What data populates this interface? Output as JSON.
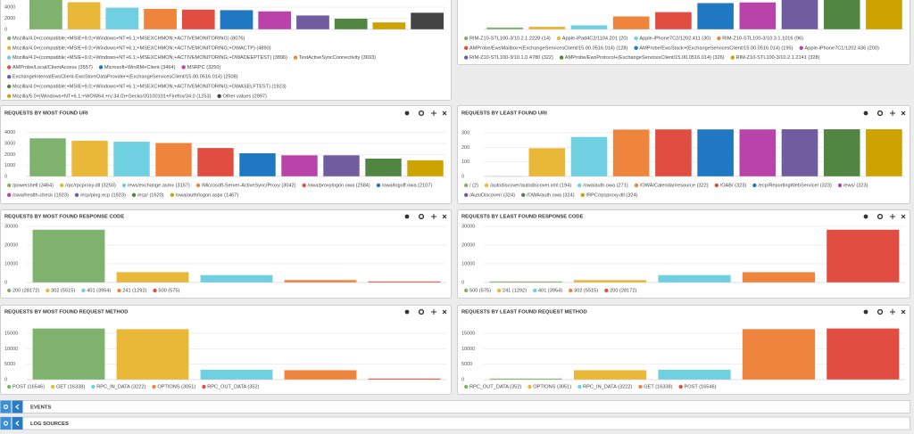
{
  "chart_data": [
    {
      "type": "bar",
      "categories": [
        "Mozilla/4.0+(compatible;+MSIE+9.0;+Windows+NT+6.1;+MSEXCHMON;+ACTIVEMONITORING) (8076)",
        "Mozilla/4.0+(compatible;+MSIE+9.0;+Windows+NT+6.1;+MSEXCHMON;+ACTIVEMONITORING;+OWACTP) (4890)",
        "Mozilla/4.0+(compatible;+MSIE+9.0;+Windows+NT+6.1;+MSEXCHMON;+ACTIVEMONITORING;+OWADEEPTEST) (3896)",
        "TestActiveSyncConnectivity (3693)",
        "AMProbe/Local/ClientAccess (3557)",
        "Microsoft+WinRM+Client (3464)",
        "MSRPC (3250)",
        "ExchangeInternalEwsClient-EwsStoreDataProvider+(ExchangeServicesClient/15.00.0516.014) (2508)",
        "Mozilla/4.0+(compatible;+MSIE+9.0;+Windows+NT+6.1;+MSEXCHMON;+ACTIVEMONITORING;+OWASELFTEST) (1923)",
        "Mozilla/5.0+(Windows+NT+6.1;+WOW64;+rv:34.0)+Gecko/20100101+Firefox/34.0 (1253)",
        "Other values (2997)"
      ],
      "values": [
        8076,
        4890,
        3896,
        3693,
        3557,
        3464,
        3250,
        2508,
        1923,
        1253,
        2997
      ],
      "colors": [
        "#7eb26d",
        "#eab839",
        "#6ed0e0",
        "#ef843c",
        "#e24d42",
        "#1f78c1",
        "#ba43a9",
        "#705da0",
        "#508642",
        "#cca300",
        "#444444"
      ],
      "ylim": [
        0,
        8500
      ],
      "yticks": [
        0,
        2000,
        4000
      ]
    },
    {
      "type": "bar",
      "categories": [
        "RIM-Z10-STL100-3/10.2.1.2228 (14)",
        "Apple-iPad4C2/1104.201 (20)",
        "Apple-iPhone7C2/1202.411 (30)",
        "RIM-Z10-STL100-3/10.3.1.1016 (96)",
        "AMProbe/EwsMailbox+(ExchangeServicesClient/15.00.0516.014) (128)",
        "AMProbe/EwsStack+(ExchangeServicesClient/15.00.0516.014) (195)",
        "Apple-iPhone7C1/1202.436 (200)",
        "RIM-Z10-STL100-3/10.1.0.4780 (322)",
        "AMProbe/EwsProtocol+(ExchangeServicesClient/15.00.0516.014) (326)",
        "RIM-Z10-STL100-3/10.2.1.2141 (328)"
      ],
      "values": [
        14,
        20,
        30,
        96,
        128,
        195,
        200,
        322,
        326,
        328
      ],
      "colors": [
        "#7eb26d",
        "#eab839",
        "#6ed0e0",
        "#ef843c",
        "#e24d42",
        "#1f78c1",
        "#ba43a9",
        "#705da0",
        "#508642",
        "#cca300"
      ],
      "ylim": [
        0,
        350
      ]
    },
    {
      "type": "bar",
      "title": "REQUESTS BY MOST FOUND URI",
      "categories": [
        "/powershell (3464)",
        "/rpc/rpcproxy.dll (3250)",
        "/ews/exchange.asmx (3157)",
        "/Microsoft-Server-ActiveSync/Proxy (3042)",
        "/owa/proxylogon.owa (2584)",
        "/owa/logoff.owa (2107)",
        "/owa/health-check (1923)",
        "/ecp/ping.ecp (1923)",
        "/ecp/ (1620)",
        "/owa/auth/logon.aspx (1467)"
      ],
      "values": [
        3464,
        3250,
        3157,
        3042,
        2584,
        2107,
        1923,
        1923,
        1620,
        1467
      ],
      "colors": [
        "#7eb26d",
        "#eab839",
        "#6ed0e0",
        "#ef843c",
        "#e24d42",
        "#1f78c1",
        "#ba43a9",
        "#705da0",
        "#508642",
        "#cca300"
      ],
      "ylim": [
        0,
        4700
      ],
      "yticks": [
        0,
        1000,
        2000,
        3000,
        4000
      ]
    },
    {
      "type": "bar",
      "title": "REQUESTS BY LEAST FOUND URI",
      "categories": [
        "/ (2)",
        "/autodiscover/autodiscover.xml (194)",
        "/owa/auth.owa (271)",
        "/OWA/Calendar/resource (322)",
        "/OAB/ (323)",
        "/ecp/ReportingWebService/ (323)",
        "/ews/ (323)",
        "/AutoDiscover/ (324)",
        "/OWA/auth.owa (324)",
        "/RPC/rpcproxy.dll (324)"
      ],
      "values": [
        2,
        194,
        271,
        322,
        323,
        323,
        323,
        324,
        324,
        324
      ],
      "colors": [
        "#7eb26d",
        "#eab839",
        "#6ed0e0",
        "#ef843c",
        "#e24d42",
        "#1f78c1",
        "#ba43a9",
        "#705da0",
        "#508642",
        "#cca300"
      ],
      "ylim": [
        0,
        355
      ],
      "yticks": [
        0,
        100,
        200,
        300
      ]
    },
    {
      "type": "bar",
      "title": "REQUESTS BY MOST FOUND RESPONSE CODE",
      "categories": [
        "200 (28172)",
        "302 (5515)",
        "401 (3954)",
        "241 (1292)",
        "500 (575)"
      ],
      "values": [
        28172,
        5515,
        3954,
        1292,
        575
      ],
      "colors": [
        "#7eb26d",
        "#eab839",
        "#6ed0e0",
        "#ef843c",
        "#e24d42"
      ],
      "ylim": [
        0,
        33300
      ],
      "yticks": [
        0,
        10000,
        20000,
        30000
      ]
    },
    {
      "type": "bar",
      "title": "REQUESTS BY LEAST FOUND RESPONSE CODE",
      "categories": [
        "500 (575)",
        "241 (1292)",
        "401 (3954)",
        "302 (5515)",
        "200 (28172)"
      ],
      "values": [
        575,
        1292,
        3954,
        5515,
        28172
      ],
      "colors": [
        "#7eb26d",
        "#eab839",
        "#6ed0e0",
        "#ef843c",
        "#e24d42"
      ],
      "ylim": [
        0,
        33300
      ],
      "yticks": [
        0,
        10000,
        20000,
        30000
      ]
    },
    {
      "type": "bar",
      "title": "REQUESTS BY MOST FOUND REQUEST METHOD",
      "categories": [
        "POST (16546)",
        "GET (16338)",
        "RPC_IN_DATA (3222)",
        "OPTIONS (3051)",
        "RPC_OUT_DATA (352)"
      ],
      "values": [
        16546,
        16338,
        3222,
        3051,
        352
      ],
      "colors": [
        "#7eb26d",
        "#eab839",
        "#6ed0e0",
        "#ef843c",
        "#e24d42"
      ],
      "ylim": [
        0,
        17300
      ],
      "yticks": [
        0,
        5000,
        10000,
        15000
      ]
    },
    {
      "type": "bar",
      "title": "REQUESTS BY LEAST FOUND REQUEST METHOD",
      "categories": [
        "RPC_OUT_DATA (352)",
        "OPTIONS (3051)",
        "RPC_IN_DATA (3222)",
        "GET (16338)",
        "POST (16546)"
      ],
      "values": [
        352,
        3051,
        3222,
        16338,
        16546
      ],
      "colors": [
        "#7eb26d",
        "#eab839",
        "#6ed0e0",
        "#ef843c",
        "#e24d42"
      ],
      "ylim": [
        0,
        17300
      ],
      "yticks": [
        0,
        5000,
        10000,
        15000
      ]
    }
  ],
  "sections": [
    "EVENTS",
    "LOG SOURCES"
  ]
}
